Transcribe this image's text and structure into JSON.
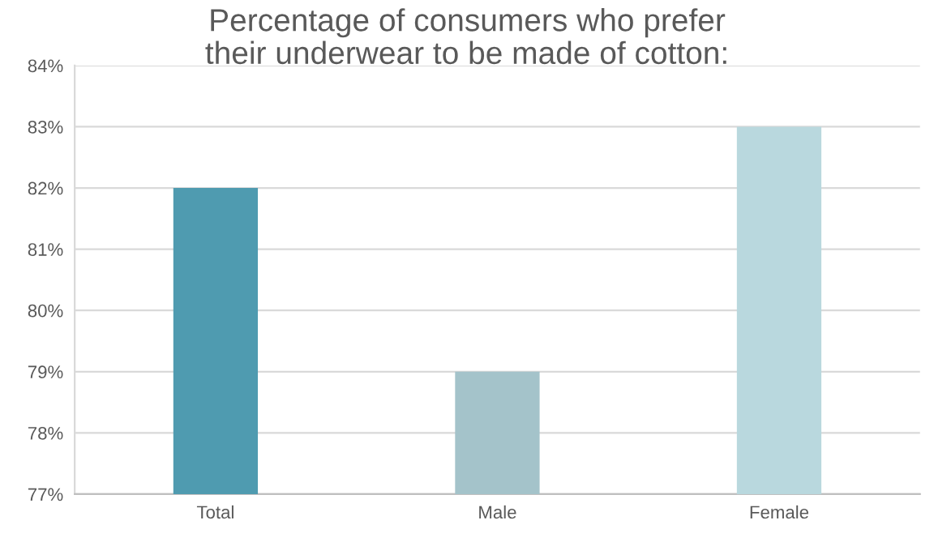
{
  "chart_data": {
    "type": "bar",
    "title": "Percentage of consumers who prefer\ntheir underwear to be made of cotton:",
    "categories": [
      "Total",
      "Male",
      "Female"
    ],
    "values": [
      82,
      79,
      83
    ],
    "colors": [
      "#4f9bb0",
      "#a4c3ca",
      "#b9d8de"
    ],
    "ylim": [
      77,
      84
    ],
    "yticks": [
      {
        "value": 77,
        "label": "77%"
      },
      {
        "value": 78,
        "label": "78%"
      },
      {
        "value": 79,
        "label": "79%"
      },
      {
        "value": 80,
        "label": "80%"
      },
      {
        "value": 81,
        "label": "81%"
      },
      {
        "value": 82,
        "label": "82%"
      },
      {
        "value": 83,
        "label": "83%"
      },
      {
        "value": 84,
        "label": "84%"
      }
    ],
    "grid": "y"
  }
}
